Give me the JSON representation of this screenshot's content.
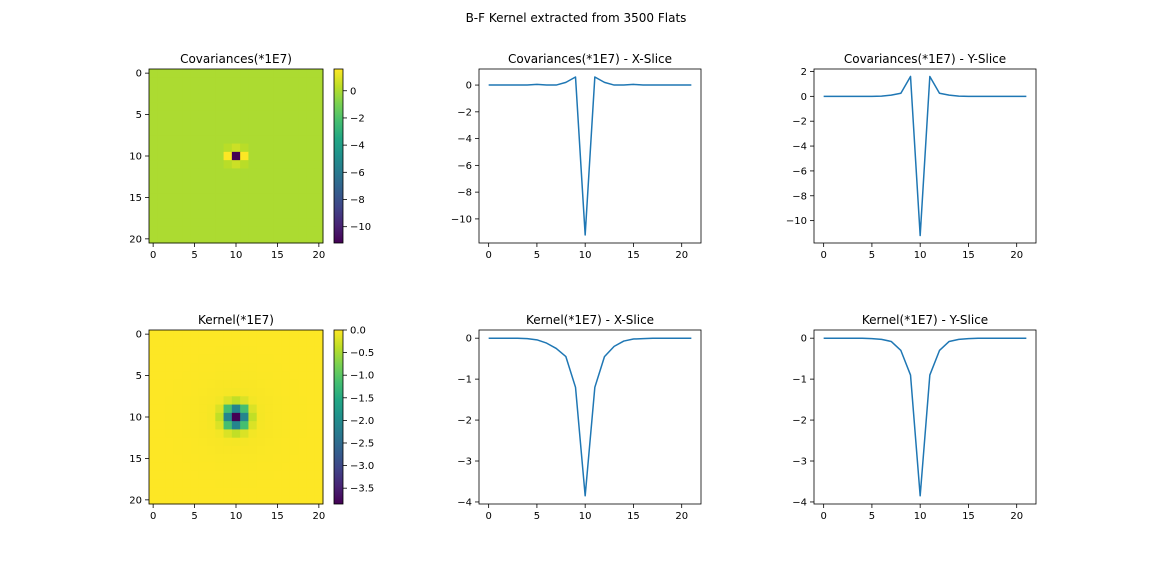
{
  "figure_title": "B-F Kernel extracted from 3500 Flats",
  "chart_data": [
    {
      "id": "cov-img",
      "type": "heatmap",
      "title": "Covariances(*1E7)",
      "colormap": "viridis",
      "grid": "21x21",
      "xticks": [
        0,
        5,
        10,
        15,
        20
      ],
      "yticks": [
        0,
        5,
        10,
        15,
        20
      ],
      "colorbar": {
        "min": -11.2,
        "max": 1.6,
        "ticks": [
          0,
          -2,
          -4,
          -6,
          -8,
          -10
        ]
      },
      "background_value": 0.0,
      "cells": [
        {
          "row": 10,
          "col": 10,
          "value": -11.2
        },
        {
          "row": 10,
          "col": 9,
          "value": 1.6
        },
        {
          "row": 10,
          "col": 11,
          "value": 1.6
        },
        {
          "row": 9,
          "col": 10,
          "value": 0.6
        },
        {
          "row": 11,
          "col": 10,
          "value": 0.6
        },
        {
          "row": 9,
          "col": 9,
          "value": 0.25
        },
        {
          "row": 9,
          "col": 11,
          "value": 0.25
        },
        {
          "row": 11,
          "col": 9,
          "value": 0.25
        },
        {
          "row": 11,
          "col": 11,
          "value": 0.25
        }
      ]
    },
    {
      "id": "cov-x",
      "type": "line",
      "title": "Covariances(*1E7) - X-Slice",
      "color": "#1f77b4",
      "x": [
        0,
        1,
        2,
        3,
        4,
        5,
        6,
        7,
        8,
        9,
        10,
        11,
        12,
        13,
        14,
        15,
        16,
        17,
        18,
        19,
        20,
        21
      ],
      "y": [
        0,
        0,
        0,
        0,
        0,
        0.05,
        0,
        0,
        0.2,
        0.6,
        -11.2,
        0.6,
        0.2,
        0,
        0,
        0.05,
        0,
        0,
        0,
        0,
        0,
        0
      ],
      "xlim": [
        -1,
        22
      ],
      "ylim": [
        -11.8,
        1.2
      ],
      "xticks": [
        0,
        5,
        10,
        15,
        20
      ],
      "yticks": [
        0,
        -2,
        -4,
        -6,
        -8,
        -10
      ]
    },
    {
      "id": "cov-y",
      "type": "line",
      "title": "Covariances(*1E7) - Y-Slice",
      "color": "#1f77b4",
      "x": [
        0,
        1,
        2,
        3,
        4,
        5,
        6,
        7,
        8,
        9,
        10,
        11,
        12,
        13,
        14,
        15,
        16,
        17,
        18,
        19,
        20,
        21
      ],
      "y": [
        0,
        0,
        0,
        0,
        0,
        0,
        0.02,
        0.1,
        0.25,
        1.6,
        -11.2,
        1.6,
        0.25,
        0.1,
        0.02,
        0,
        0,
        0,
        0,
        0,
        0,
        0
      ],
      "xlim": [
        -1,
        22
      ],
      "ylim": [
        -11.8,
        2.2
      ],
      "xticks": [
        0,
        5,
        10,
        15,
        20
      ],
      "yticks": [
        2,
        0,
        -2,
        -4,
        -6,
        -8,
        -10
      ]
    },
    {
      "id": "ker-img",
      "type": "heatmap",
      "title": "Kernel(*1E7)",
      "colormap": "viridis",
      "grid": "21x21",
      "xticks": [
        0,
        5,
        10,
        15,
        20
      ],
      "yticks": [
        0,
        5,
        10,
        15,
        20
      ],
      "colorbar": {
        "min": -3.85,
        "max": 0.0,
        "ticks": [
          0.0,
          -0.5,
          -1.0,
          -1.5,
          -2.0,
          -2.5,
          -3.0,
          -3.5
        ]
      },
      "center": {
        "row": 10,
        "col": 10,
        "value": -3.85
      },
      "falloff_note": "kernel decreases radially from center"
    },
    {
      "id": "ker-x",
      "type": "line",
      "title": "Kernel(*1E7) - X-Slice",
      "color": "#1f77b4",
      "x": [
        0,
        1,
        2,
        3,
        4,
        5,
        6,
        7,
        8,
        9,
        10,
        11,
        12,
        13,
        14,
        15,
        16,
        17,
        18,
        19,
        20,
        21
      ],
      "y": [
        0,
        0,
        0,
        0,
        -0.01,
        -0.04,
        -0.12,
        -0.25,
        -0.45,
        -1.2,
        -3.85,
        -1.2,
        -0.45,
        -0.2,
        -0.07,
        -0.02,
        -0.01,
        0,
        0,
        0,
        0,
        0
      ],
      "xlim": [
        -1,
        22
      ],
      "ylim": [
        -4.05,
        0.2
      ],
      "xticks": [
        0,
        5,
        10,
        15,
        20
      ],
      "yticks": [
        0,
        -1,
        -2,
        -3,
        -4
      ]
    },
    {
      "id": "ker-y",
      "type": "line",
      "title": "Kernel(*1E7) - Y-Slice",
      "color": "#1f77b4",
      "x": [
        0,
        1,
        2,
        3,
        4,
        5,
        6,
        7,
        8,
        9,
        10,
        11,
        12,
        13,
        14,
        15,
        16,
        17,
        18,
        19,
        20,
        21
      ],
      "y": [
        0,
        0,
        0,
        0,
        0,
        -0.01,
        -0.03,
        -0.08,
        -0.3,
        -0.9,
        -3.85,
        -0.9,
        -0.3,
        -0.08,
        -0.03,
        -0.01,
        0,
        0,
        0,
        0,
        0,
        0
      ],
      "xlim": [
        -1,
        22
      ],
      "ylim": [
        -4.05,
        0.2
      ],
      "xticks": [
        0,
        5,
        10,
        15,
        20
      ],
      "yticks": [
        0,
        -1,
        -2,
        -3,
        -4
      ]
    }
  ]
}
